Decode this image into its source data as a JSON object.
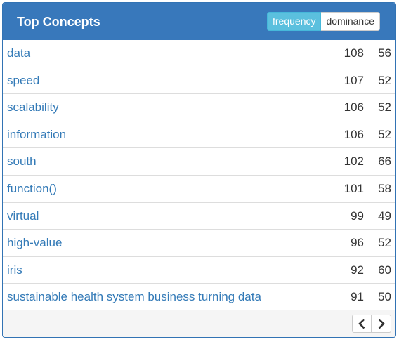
{
  "panel": {
    "title": "Top Concepts",
    "toggle": {
      "active": "frequency",
      "inactive": "dominance"
    }
  },
  "rows": [
    {
      "concept": "data",
      "frequency": "108",
      "dominance": "56"
    },
    {
      "concept": "speed",
      "frequency": "107",
      "dominance": "52"
    },
    {
      "concept": "scalability",
      "frequency": "106",
      "dominance": "52"
    },
    {
      "concept": "information",
      "frequency": "106",
      "dominance": "52"
    },
    {
      "concept": "south",
      "frequency": "102",
      "dominance": "66"
    },
    {
      "concept": "function()",
      "frequency": "101",
      "dominance": "58"
    },
    {
      "concept": "virtual",
      "frequency": "99",
      "dominance": "49"
    },
    {
      "concept": "high-value",
      "frequency": "96",
      "dominance": "52"
    },
    {
      "concept": "iris",
      "frequency": "92",
      "dominance": "60"
    },
    {
      "concept": "sustainable health system business turning data",
      "frequency": "91",
      "dominance": "50"
    }
  ],
  "pager": {
    "prev_icon": "chevron-left-icon",
    "next_icon": "chevron-right-icon"
  },
  "colors": {
    "heading_bg": "#3878bb",
    "link": "#337ab7",
    "toggle_active": "#5bc0de"
  }
}
